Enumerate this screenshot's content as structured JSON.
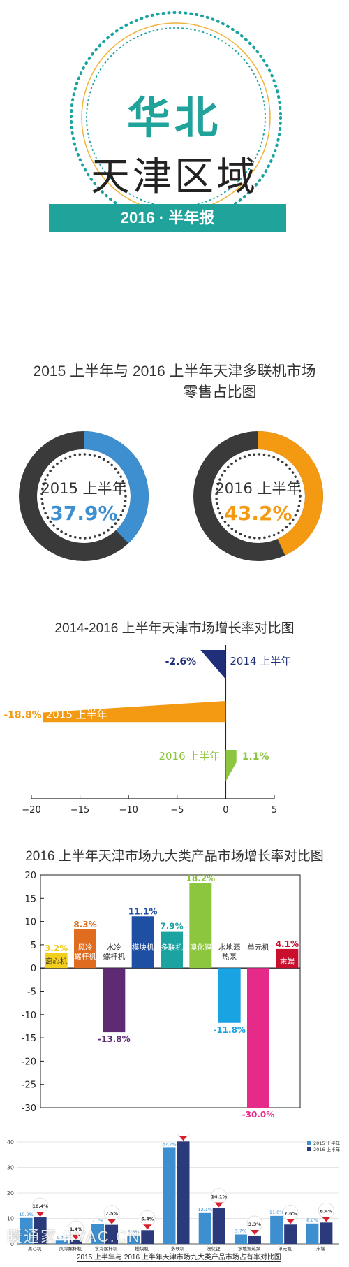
{
  "header": {
    "line1": "华北",
    "line2": "天津区域",
    "banner": "2016 · 半年报",
    "colors": {
      "teal": "#1fa39a",
      "ring": "#1aa3a0",
      "ring2": "#f0b33b"
    }
  },
  "section1": {
    "title_line1": "2015 上半年与 2016 上半年天津多联机市场",
    "title_line2": "零售占比图",
    "donuts": [
      {
        "label": "2015 上半年",
        "value_text": "37.9%",
        "value": 37.9,
        "color": "#3d8fd0"
      },
      {
        "label": "2016 上半年",
        "value_text": "43.2%",
        "value": 43.2,
        "color": "#f39a12"
      }
    ]
  },
  "section2": {
    "title": "2014-2016 上半年天津市场增长率对比图",
    "chart_data": {
      "type": "bar",
      "orientation": "horizontal",
      "categories": [
        "2014 上半年",
        "2015 上半年",
        "2016 上半年"
      ],
      "values": [
        -2.6,
        -18.8,
        1.1
      ],
      "value_labels": [
        "-2.6%",
        "-18.8%",
        "1.1%"
      ],
      "colors": [
        "#1f2f7a",
        "#f39a12",
        "#8cc63f"
      ],
      "xlim": [
        -20,
        5
      ],
      "xticks": [
        "−20",
        "−15",
        "−10",
        "−5",
        "0",
        "5"
      ]
    }
  },
  "section3": {
    "title": "2016 上半年天津市场九大类产品市场增长率对比图",
    "chart_data": {
      "type": "bar",
      "categories": [
        "离心机",
        "风冷螺杆机",
        "水冷螺杆机",
        "模块机",
        "多联机",
        "溴化锂",
        "水地源热泵",
        "单元机",
        "末端"
      ],
      "category_lines": [
        [
          "离心机"
        ],
        [
          "风冷",
          "螺杆机"
        ],
        [
          "水冷",
          "螺杆机"
        ],
        [
          "模块机"
        ],
        [
          "多联机"
        ],
        [
          "溴化锂"
        ],
        [
          "水地源",
          "热泵"
        ],
        [
          "单元机"
        ],
        [
          "末端"
        ]
      ],
      "values": [
        3.2,
        8.3,
        -13.8,
        11.1,
        7.9,
        18.2,
        -11.8,
        -30.0,
        4.1
      ],
      "value_labels": [
        "3.2%",
        "8.3%",
        "-13.8%",
        "11.1%",
        "7.9%",
        "18.2%",
        "-11.8%",
        "-30.0%",
        "4.1%"
      ],
      "colors": [
        "#f2cf1d",
        "#e06c1f",
        "#5d2a73",
        "#1f4fa3",
        "#1aa3a0",
        "#8cc63f",
        "#1aa3e2",
        "#e62a8a",
        "#c8102e"
      ],
      "ylim": [
        -30,
        20
      ],
      "yticks": [
        "20",
        "15",
        "10",
        "5",
        "0",
        "-5",
        "-10",
        "-15",
        "-20",
        "-25",
        "-30"
      ]
    }
  },
  "section4": {
    "title": "2015 上半年与 2016 上半年天津市场九大类产品市场占有率对比图",
    "legend": [
      "2015 上半年",
      "2016 上半年"
    ],
    "watermark": "暖通家 HVAC.CN",
    "chart_data": {
      "type": "bar",
      "categories": [
        "离心机",
        "风冷螺杆机",
        "水冷螺杆机",
        "模块机",
        "多联机",
        "溴化锂",
        "水地源热泵",
        "单元机",
        "末端"
      ],
      "series": [
        {
          "name": "2015 上半年",
          "values": [
            10.2,
            1.3,
            7.7,
            3.3,
            37.7,
            12.1,
            3.7,
            11.0,
            8.0
          ],
          "labels": [
            "10.2%",
            "1.3%",
            "7.7%",
            "3.3%",
            "37.7%",
            "12.1%",
            "3.7%",
            "11.0%",
            "8.0%"
          ]
        },
        {
          "name": "2016 上半年",
          "values": [
            10.4,
            1.4,
            7.5,
            5.4,
            40.2,
            14.1,
            3.3,
            7.6,
            8.4
          ],
          "labels": [
            "10.4%",
            "1.4%",
            "7.5%",
            "5.4%",
            "40.2%",
            "14.1%",
            "3.3%",
            "7.6%",
            "8.4%"
          ]
        }
      ],
      "ylim": [
        0,
        40
      ],
      "yticks": [
        "40",
        "30",
        "20",
        "10",
        "0"
      ],
      "colors": [
        "#3d8fd0",
        "#2b3a7a"
      ]
    }
  }
}
